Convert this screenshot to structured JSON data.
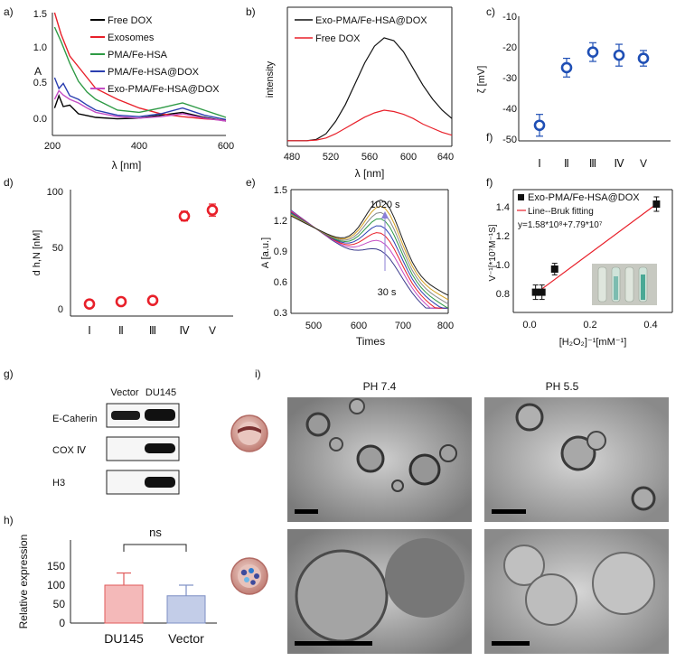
{
  "panels": {
    "a": {
      "letter": "a)",
      "ylabel": "A",
      "xlabel": "λ [nm]",
      "xticks": [
        "200",
        "400",
        "600"
      ],
      "yticks": [
        "0.0",
        "0.5",
        "1.0",
        "1.5"
      ],
      "legend": [
        "Free DOX",
        "Exosomes",
        "PMA/Fe-HSA",
        "PMA/Fe-HSA@DOX",
        "Exo-PMA/Fe-HSA@DOX"
      ]
    },
    "b": {
      "letter": "b)",
      "ylabel": "intensity",
      "xlabel": "λ [nm]",
      "xticks": [
        "480",
        "520",
        "560",
        "600",
        "640"
      ],
      "legend": [
        "Exo-PMA/Fe-HSA@DOX",
        "Free DOX"
      ]
    },
    "c": {
      "letter": "c)",
      "ylabel": "ζ [mV]",
      "extra_letter": "f)",
      "xticks": [
        "Ⅰ",
        "Ⅱ",
        "Ⅲ",
        "Ⅳ",
        "V"
      ],
      "yticks": [
        "-10",
        "-20",
        "-30",
        "-40",
        "-50"
      ]
    },
    "d": {
      "letter": "d)",
      "ylabel": "d h,N [nM]",
      "xticks": [
        "Ⅰ",
        "Ⅱ",
        "Ⅲ",
        "Ⅳ",
        "V"
      ],
      "yticks": [
        "0",
        "50",
        "100"
      ]
    },
    "e": {
      "letter": "e)",
      "ylabel": "A [a.u.]",
      "xlabel": "Times",
      "xticks": [
        "500",
        "600",
        "700",
        "800"
      ],
      "yticks": [
        "0.3",
        "0.6",
        "0.9",
        "1.2",
        "1.5"
      ],
      "ann_top": "1020 s",
      "ann_bottom": "30 s"
    },
    "f": {
      "letter": "f)",
      "ylabel": "V⁻¹[*10⁷M⁻¹S]",
      "xlabel": "[H₂O₂]⁻¹[mM⁻¹]",
      "xticks": [
        "0.0",
        "0.2",
        "0.4"
      ],
      "yticks": [
        "0.8",
        "1.0",
        "1.2",
        "1.4"
      ],
      "legend": [
        "Exo-PMA/Fe-HSA@DOX",
        "Line--Bruk fitting",
        "y=1.58*10⁸+7.79*10⁷"
      ]
    },
    "g": {
      "letter": "g)",
      "columns": [
        "Vector",
        "DU145"
      ],
      "rows": [
        "E-Caherin",
        "COX Ⅳ",
        "H3"
      ]
    },
    "h": {
      "letter": "h)",
      "ylabel": "Relative expression",
      "significance": "ns",
      "xticks": [
        "DU145",
        "Vector"
      ],
      "yticks": [
        "0",
        "50",
        "100",
        "150"
      ]
    },
    "i": {
      "letter": "i)",
      "col1": "PH  7.4",
      "col2": "PH 5.5"
    }
  },
  "chart_data": [
    {
      "panel": "a",
      "type": "line",
      "xlim": [
        200,
        600
      ],
      "ylim": [
        -0.2,
        1.5
      ],
      "series": [
        {
          "name": "Free DOX",
          "color": "#000000",
          "x": [
            205,
            215,
            225,
            240,
            260,
            300,
            350,
            400,
            450,
            500,
            550,
            600
          ],
          "y": [
            0.18,
            0.35,
            0.2,
            0.22,
            0.1,
            0.05,
            0.03,
            0.04,
            0.08,
            0.12,
            0.05,
            0.0
          ]
        },
        {
          "name": "Exosomes",
          "color": "#e8202a",
          "x": [
            205,
            220,
            240,
            260,
            280,
            300,
            350,
            400,
            450,
            500,
            550,
            600
          ],
          "y": [
            1.5,
            1.2,
            0.9,
            0.75,
            0.6,
            0.45,
            0.3,
            0.18,
            0.1,
            0.06,
            0.03,
            0.01
          ]
        },
        {
          "name": "PMA/Fe-HSA",
          "color": "#2e9a45",
          "x": [
            205,
            220,
            240,
            260,
            280,
            300,
            350,
            400,
            450,
            500,
            550,
            600
          ],
          "y": [
            1.3,
            1.1,
            0.8,
            0.55,
            0.4,
            0.3,
            0.15,
            0.12,
            0.18,
            0.25,
            0.15,
            0.05
          ]
        },
        {
          "name": "PMA/Fe-HSA@DOX",
          "color": "#2b3fb0",
          "x": [
            205,
            215,
            225,
            240,
            260,
            280,
            300,
            350,
            400,
            450,
            500,
            550,
            600
          ],
          "y": [
            0.6,
            0.45,
            0.52,
            0.35,
            0.3,
            0.22,
            0.15,
            0.08,
            0.06,
            0.1,
            0.18,
            0.08,
            0.02
          ]
        },
        {
          "name": "Exo-PMA/Fe-HSA@DOX",
          "color": "#c44dc4",
          "x": [
            205,
            215,
            225,
            240,
            260,
            280,
            300,
            350,
            400,
            450,
            500,
            550,
            600
          ],
          "y": [
            0.3,
            0.42,
            0.36,
            0.3,
            0.25,
            0.18,
            0.12,
            0.06,
            0.04,
            0.06,
            0.1,
            0.04,
            0.0
          ]
        }
      ]
    },
    {
      "panel": "b",
      "type": "line",
      "xlim": [
        480,
        650
      ],
      "ylim": [
        0,
        1
      ],
      "series": [
        {
          "name": "Exo-PMA/Fe-HSA@DOX",
          "color": "#111111",
          "x": [
            480,
            500,
            510,
            520,
            530,
            540,
            550,
            560,
            570,
            580,
            590,
            600,
            610,
            620,
            630,
            640,
            650
          ],
          "y": [
            0.04,
            0.04,
            0.05,
            0.09,
            0.18,
            0.3,
            0.45,
            0.6,
            0.72,
            0.78,
            0.76,
            0.68,
            0.56,
            0.44,
            0.34,
            0.26,
            0.2
          ]
        },
        {
          "name": "Free DOX",
          "color": "#e8202a",
          "x": [
            480,
            500,
            510,
            520,
            530,
            540,
            550,
            560,
            570,
            580,
            590,
            600,
            610,
            620,
            630,
            640,
            650
          ],
          "y": [
            0.04,
            0.04,
            0.045,
            0.06,
            0.09,
            0.13,
            0.17,
            0.21,
            0.24,
            0.26,
            0.25,
            0.23,
            0.2,
            0.16,
            0.13,
            0.1,
            0.08
          ]
        }
      ]
    },
    {
      "panel": "c",
      "type": "scatter",
      "categories": [
        "Ⅰ",
        "Ⅱ",
        "Ⅲ",
        "Ⅳ",
        "V"
      ],
      "ylim": [
        -50,
        -10
      ],
      "color": "#1f4fb5",
      "values": [
        -45,
        -26.5,
        -21.5,
        -22.5,
        -23.5
      ],
      "errors": [
        3.5,
        3,
        3,
        3.5,
        2.5
      ]
    },
    {
      "panel": "d",
      "type": "scatter",
      "categories": [
        "Ⅰ",
        "Ⅱ",
        "Ⅲ",
        "Ⅳ",
        "V"
      ],
      "ylim": [
        -5,
        100
      ],
      "color": "#e8202a",
      "values": [
        5,
        7,
        8,
        78,
        83
      ],
      "errors": [
        1.5,
        1.5,
        2,
        4,
        5
      ]
    },
    {
      "panel": "e",
      "type": "line",
      "xlim": [
        450,
        800
      ],
      "ylim": [
        0.3,
        1.5
      ],
      "curves": [
        {
          "color": "#3a3a8c",
          "peak": 0.8
        },
        {
          "color": "#c44dc4",
          "peak": 0.87
        },
        {
          "color": "#e8202a",
          "peak": 0.93
        },
        {
          "color": "#2b3fb0",
          "peak": 0.98
        },
        {
          "color": "#2e9a45",
          "peak": 1.03
        },
        {
          "color": "#888888",
          "peak": 1.07
        },
        {
          "color": "#d4a020",
          "peak": 1.11
        },
        {
          "color": "#222222",
          "peak": 1.15
        }
      ]
    },
    {
      "panel": "f",
      "type": "scatter",
      "xlim": [
        -0.05,
        0.45
      ],
      "ylim": [
        0.65,
        1.5
      ],
      "points": [
        {
          "x": 0.02,
          "y": 0.79,
          "e": 0.05
        },
        {
          "x": 0.04,
          "y": 0.79,
          "e": 0.05
        },
        {
          "x": 0.08,
          "y": 0.95,
          "e": 0.04
        },
        {
          "x": 0.4,
          "y": 1.4,
          "e": 0.05
        }
      ],
      "fit": [
        [
          0.02,
          0.78
        ],
        [
          0.4,
          1.4
        ]
      ]
    },
    {
      "panel": "h",
      "type": "bar",
      "categories": [
        "DU145",
        "Vector"
      ],
      "values": [
        100,
        72
      ],
      "errors": [
        32,
        28
      ],
      "ylim": [
        0,
        150
      ],
      "colors": [
        "#f4b9b9",
        "#c3cde8"
      ],
      "edges": [
        "#e05a5a",
        "#7d8fc4"
      ]
    }
  ]
}
